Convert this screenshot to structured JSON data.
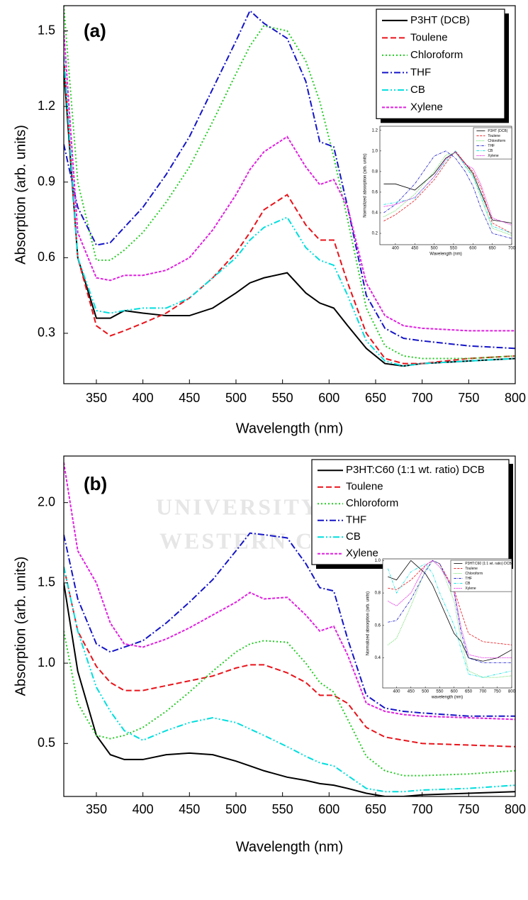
{
  "chart_data": [
    {
      "type": "line",
      "panel_label": "(a)",
      "xlabel": "Wavelength (nm)",
      "ylabel": "Absorption (arb. units)",
      "xlim": [
        315,
        800
      ],
      "ylim": [
        0.1,
        1.6
      ],
      "xticks": [
        350,
        400,
        450,
        500,
        550,
        600,
        650,
        700,
        750,
        800
      ],
      "yticks": [
        0.3,
        0.6,
        0.9,
        1.2,
        1.5
      ],
      "legend": "upper right",
      "x": [
        315,
        330,
        350,
        365,
        380,
        400,
        425,
        450,
        475,
        500,
        515,
        530,
        555,
        575,
        590,
        605,
        620,
        640,
        660,
        680,
        700,
        750,
        800
      ],
      "series": [
        {
          "name": "P3HT (DCB)",
          "color": "#000000",
          "linestyle": "solid",
          "values": [
            1.35,
            0.6,
            0.36,
            0.36,
            0.39,
            0.38,
            0.37,
            0.37,
            0.4,
            0.46,
            0.5,
            0.52,
            0.54,
            0.46,
            0.42,
            0.4,
            0.33,
            0.24,
            0.18,
            0.17,
            0.18,
            0.19,
            0.2
          ]
        },
        {
          "name": "Toulene",
          "color": "#e8131a",
          "linestyle": "dashed",
          "values": [
            1.4,
            0.6,
            0.33,
            0.29,
            0.31,
            0.34,
            0.38,
            0.44,
            0.52,
            0.62,
            0.7,
            0.79,
            0.85,
            0.73,
            0.67,
            0.67,
            0.5,
            0.3,
            0.2,
            0.18,
            0.18,
            0.2,
            0.21
          ]
        },
        {
          "name": "Chloroform",
          "color": "#22cc22",
          "linestyle": "dotted",
          "values": [
            1.6,
            0.9,
            0.59,
            0.59,
            0.63,
            0.7,
            0.82,
            0.96,
            1.14,
            1.33,
            1.44,
            1.52,
            1.5,
            1.38,
            1.22,
            1.0,
            0.75,
            0.4,
            0.25,
            0.21,
            0.2,
            0.2,
            0.21
          ]
        },
        {
          "name": "THF",
          "color": "#1515c8",
          "linestyle": "dashdot",
          "values": [
            1.05,
            0.8,
            0.65,
            0.66,
            0.72,
            0.8,
            0.93,
            1.08,
            1.27,
            1.46,
            1.58,
            1.53,
            1.47,
            1.3,
            1.06,
            1.04,
            0.8,
            0.45,
            0.32,
            0.28,
            0.27,
            0.25,
            0.24
          ]
        },
        {
          "name": "CB",
          "color": "#00dede",
          "linestyle": "dashdotdot",
          "values": [
            1.4,
            0.6,
            0.39,
            0.38,
            0.39,
            0.4,
            0.4,
            0.44,
            0.52,
            0.6,
            0.67,
            0.72,
            0.76,
            0.64,
            0.59,
            0.57,
            0.45,
            0.27,
            0.19,
            0.17,
            0.18,
            0.19,
            0.2
          ]
        },
        {
          "name": "Xylene",
          "color": "#e020e0",
          "linestyle": "shortdash",
          "values": [
            1.5,
            0.7,
            0.52,
            0.51,
            0.53,
            0.53,
            0.55,
            0.6,
            0.71,
            0.85,
            0.95,
            1.02,
            1.08,
            0.96,
            0.89,
            0.91,
            0.8,
            0.5,
            0.37,
            0.33,
            0.32,
            0.31,
            0.31
          ]
        }
      ]
    },
    {
      "type": "line",
      "panel_label": "(b)",
      "xlabel": "Wavelength (nm)",
      "ylabel": "Absorption (arb. units)",
      "xlim": [
        315,
        800
      ],
      "ylim": [
        0.17,
        2.29
      ],
      "xticks": [
        350,
        400,
        450,
        500,
        550,
        600,
        650,
        700,
        750,
        800
      ],
      "yticks": [
        0.5,
        {
          "value": 1.0,
          "label": "1.0"
        },
        1.5,
        {
          "value": 2.0,
          "label": "2.0"
        }
      ],
      "legend": "upper right",
      "x": [
        315,
        330,
        350,
        365,
        380,
        400,
        425,
        450,
        475,
        500,
        515,
        530,
        555,
        575,
        590,
        605,
        620,
        640,
        660,
        680,
        700,
        750,
        800
      ],
      "series": [
        {
          "name": "P3HT:C60 (1:1 wt. ratio) DCB",
          "color": "#000000",
          "linestyle": "solid",
          "values": [
            1.5,
            0.95,
            0.55,
            0.43,
            0.4,
            0.4,
            0.43,
            0.44,
            0.43,
            0.39,
            0.36,
            0.33,
            0.29,
            0.27,
            0.25,
            0.24,
            0.22,
            0.19,
            0.17,
            0.17,
            0.18,
            0.19,
            0.2
          ]
        },
        {
          "name": "Toulene",
          "color": "#e8131a",
          "linestyle": "dashed",
          "values": [
            1.6,
            1.2,
            0.98,
            0.88,
            0.83,
            0.83,
            0.86,
            0.89,
            0.92,
            0.97,
            0.99,
            0.99,
            0.94,
            0.88,
            0.8,
            0.8,
            0.75,
            0.6,
            0.54,
            0.52,
            0.5,
            0.49,
            0.48
          ]
        },
        {
          "name": "Chloroform",
          "color": "#22cc22",
          "linestyle": "dotted",
          "values": [
            1.2,
            0.75,
            0.55,
            0.53,
            0.55,
            0.6,
            0.7,
            0.82,
            0.95,
            1.07,
            1.12,
            1.14,
            1.13,
            1.0,
            0.88,
            0.82,
            0.65,
            0.42,
            0.33,
            0.3,
            0.3,
            0.31,
            0.33
          ]
        },
        {
          "name": "THF",
          "color": "#1515c8",
          "linestyle": "dashdot",
          "values": [
            1.8,
            1.4,
            1.12,
            1.07,
            1.1,
            1.14,
            1.25,
            1.38,
            1.52,
            1.7,
            1.81,
            1.8,
            1.78,
            1.62,
            1.47,
            1.45,
            1.15,
            0.8,
            0.72,
            0.7,
            0.69,
            0.67,
            0.67
          ]
        },
        {
          "name": "CB",
          "color": "#00dede",
          "linestyle": "dashdotdot",
          "values": [
            1.6,
            1.2,
            0.85,
            0.7,
            0.58,
            0.52,
            0.58,
            0.63,
            0.66,
            0.63,
            0.59,
            0.55,
            0.48,
            0.42,
            0.38,
            0.36,
            0.3,
            0.22,
            0.2,
            0.2,
            0.21,
            0.22,
            0.24
          ]
        },
        {
          "name": "Xylene",
          "color": "#e020e0",
          "linestyle": "shortdash",
          "values": [
            2.25,
            1.7,
            1.5,
            1.25,
            1.12,
            1.1,
            1.15,
            1.22,
            1.3,
            1.38,
            1.44,
            1.4,
            1.41,
            1.3,
            1.2,
            1.23,
            1.05,
            0.75,
            0.7,
            0.68,
            0.67,
            0.66,
            0.65
          ]
        }
      ]
    },
    {
      "type": "line",
      "xlabel": "Wavelength (nm)",
      "ylabel": "Normalized absorption (arb. units)",
      "xlim": [
        360,
        700
      ],
      "ylim": [
        0.09,
        1.24
      ],
      "xticks": [
        400,
        450,
        500,
        550,
        600,
        650,
        700
      ],
      "yticks": [
        0.2,
        0.4,
        0.6,
        0.8,
        {
          "value": 1.0,
          "label": "1.0"
        },
        1.2
      ],
      "legend": "upper right",
      "x": [
        370,
        400,
        450,
        500,
        530,
        555,
        580,
        600,
        620,
        650,
        700
      ],
      "series": [
        {
          "name": "P3HT (DCB)",
          "color": "#000000",
          "linestyle": "solid",
          "values": [
            0.68,
            0.68,
            0.62,
            0.78,
            0.93,
            0.99,
            0.88,
            0.78,
            0.6,
            0.33,
            0.3
          ]
        },
        {
          "name": "Toulene",
          "color": "#e8131a",
          "linestyle": "dashed",
          "values": [
            0.32,
            0.38,
            0.52,
            0.72,
            0.88,
            1.0,
            0.88,
            0.8,
            0.65,
            0.3,
            0.2
          ]
        },
        {
          "name": "Chloroform",
          "color": "#22cc22",
          "linestyle": "dotted",
          "values": [
            0.36,
            0.42,
            0.58,
            0.8,
            0.96,
            0.98,
            0.86,
            0.76,
            0.55,
            0.25,
            0.18
          ]
        },
        {
          "name": "THF",
          "color": "#1515c8",
          "linestyle": "dashdot",
          "values": [
            0.4,
            0.48,
            0.68,
            0.95,
            1.0,
            0.93,
            0.8,
            0.66,
            0.45,
            0.2,
            0.15
          ]
        },
        {
          "name": "CB",
          "color": "#00dede",
          "linestyle": "dashdotdot",
          "values": [
            0.48,
            0.5,
            0.54,
            0.75,
            0.9,
            1.0,
            0.85,
            0.75,
            0.58,
            0.27,
            0.2
          ]
        },
        {
          "name": "Xylene",
          "color": "#e020e0",
          "linestyle": "shortdash",
          "values": [
            0.46,
            0.48,
            0.55,
            0.75,
            0.92,
            0.99,
            0.87,
            0.83,
            0.68,
            0.35,
            0.28
          ]
        }
      ]
    },
    {
      "type": "line",
      "xlabel": "wavelength (nm)",
      "ylabel": "Normalized absorption (arb. units)",
      "xlim": [
        352,
        800
      ],
      "ylim": [
        0.215,
        1.01
      ],
      "xticks": [
        400,
        450,
        500,
        550,
        600,
        650,
        700,
        750,
        800
      ],
      "yticks": [
        0.4,
        0.6,
        0.8,
        {
          "value": 1.0,
          "label": "1.0"
        }
      ],
      "legend": "upper right",
      "x": [
        370,
        400,
        450,
        500,
        525,
        550,
        600,
        625,
        650,
        700,
        750,
        800
      ],
      "series": [
        {
          "name": "P3HT:C60 (1:1 wt. ratio) DCB",
          "color": "#000000",
          "linestyle": "solid",
          "values": [
            0.9,
            0.88,
            1.0,
            0.92,
            0.85,
            0.75,
            0.55,
            0.5,
            0.4,
            0.38,
            0.4,
            0.45
          ]
        },
        {
          "name": "Toulene",
          "color": "#e8131a",
          "linestyle": "dashed",
          "values": [
            0.83,
            0.82,
            0.88,
            0.97,
            1.0,
            0.98,
            0.82,
            0.68,
            0.55,
            0.5,
            0.49,
            0.48
          ]
        },
        {
          "name": "Chloroform",
          "color": "#22cc22",
          "linestyle": "dotted",
          "values": [
            0.48,
            0.52,
            0.72,
            0.94,
            1.0,
            0.98,
            0.75,
            0.5,
            0.32,
            0.28,
            0.28,
            0.29
          ]
        },
        {
          "name": "THF",
          "color": "#1515c8",
          "linestyle": "dashdot",
          "values": [
            0.62,
            0.63,
            0.76,
            0.93,
            1.0,
            0.98,
            0.8,
            0.55,
            0.4,
            0.37,
            0.37,
            0.37
          ]
        },
        {
          "name": "CB",
          "color": "#00dede",
          "linestyle": "dashdotdot",
          "values": [
            0.95,
            0.8,
            0.93,
            0.98,
            0.92,
            0.8,
            0.6,
            0.45,
            0.3,
            0.28,
            0.3,
            0.32
          ]
        },
        {
          "name": "Xylene",
          "color": "#e020e0",
          "linestyle": "shortdash",
          "values": [
            0.75,
            0.72,
            0.8,
            0.97,
            1.0,
            0.96,
            0.82,
            0.58,
            0.42,
            0.4,
            0.4,
            0.4
          ]
        }
      ]
    }
  ],
  "watermark": [
    "UNIVERSITY of",
    "WESTERN CAPE"
  ]
}
